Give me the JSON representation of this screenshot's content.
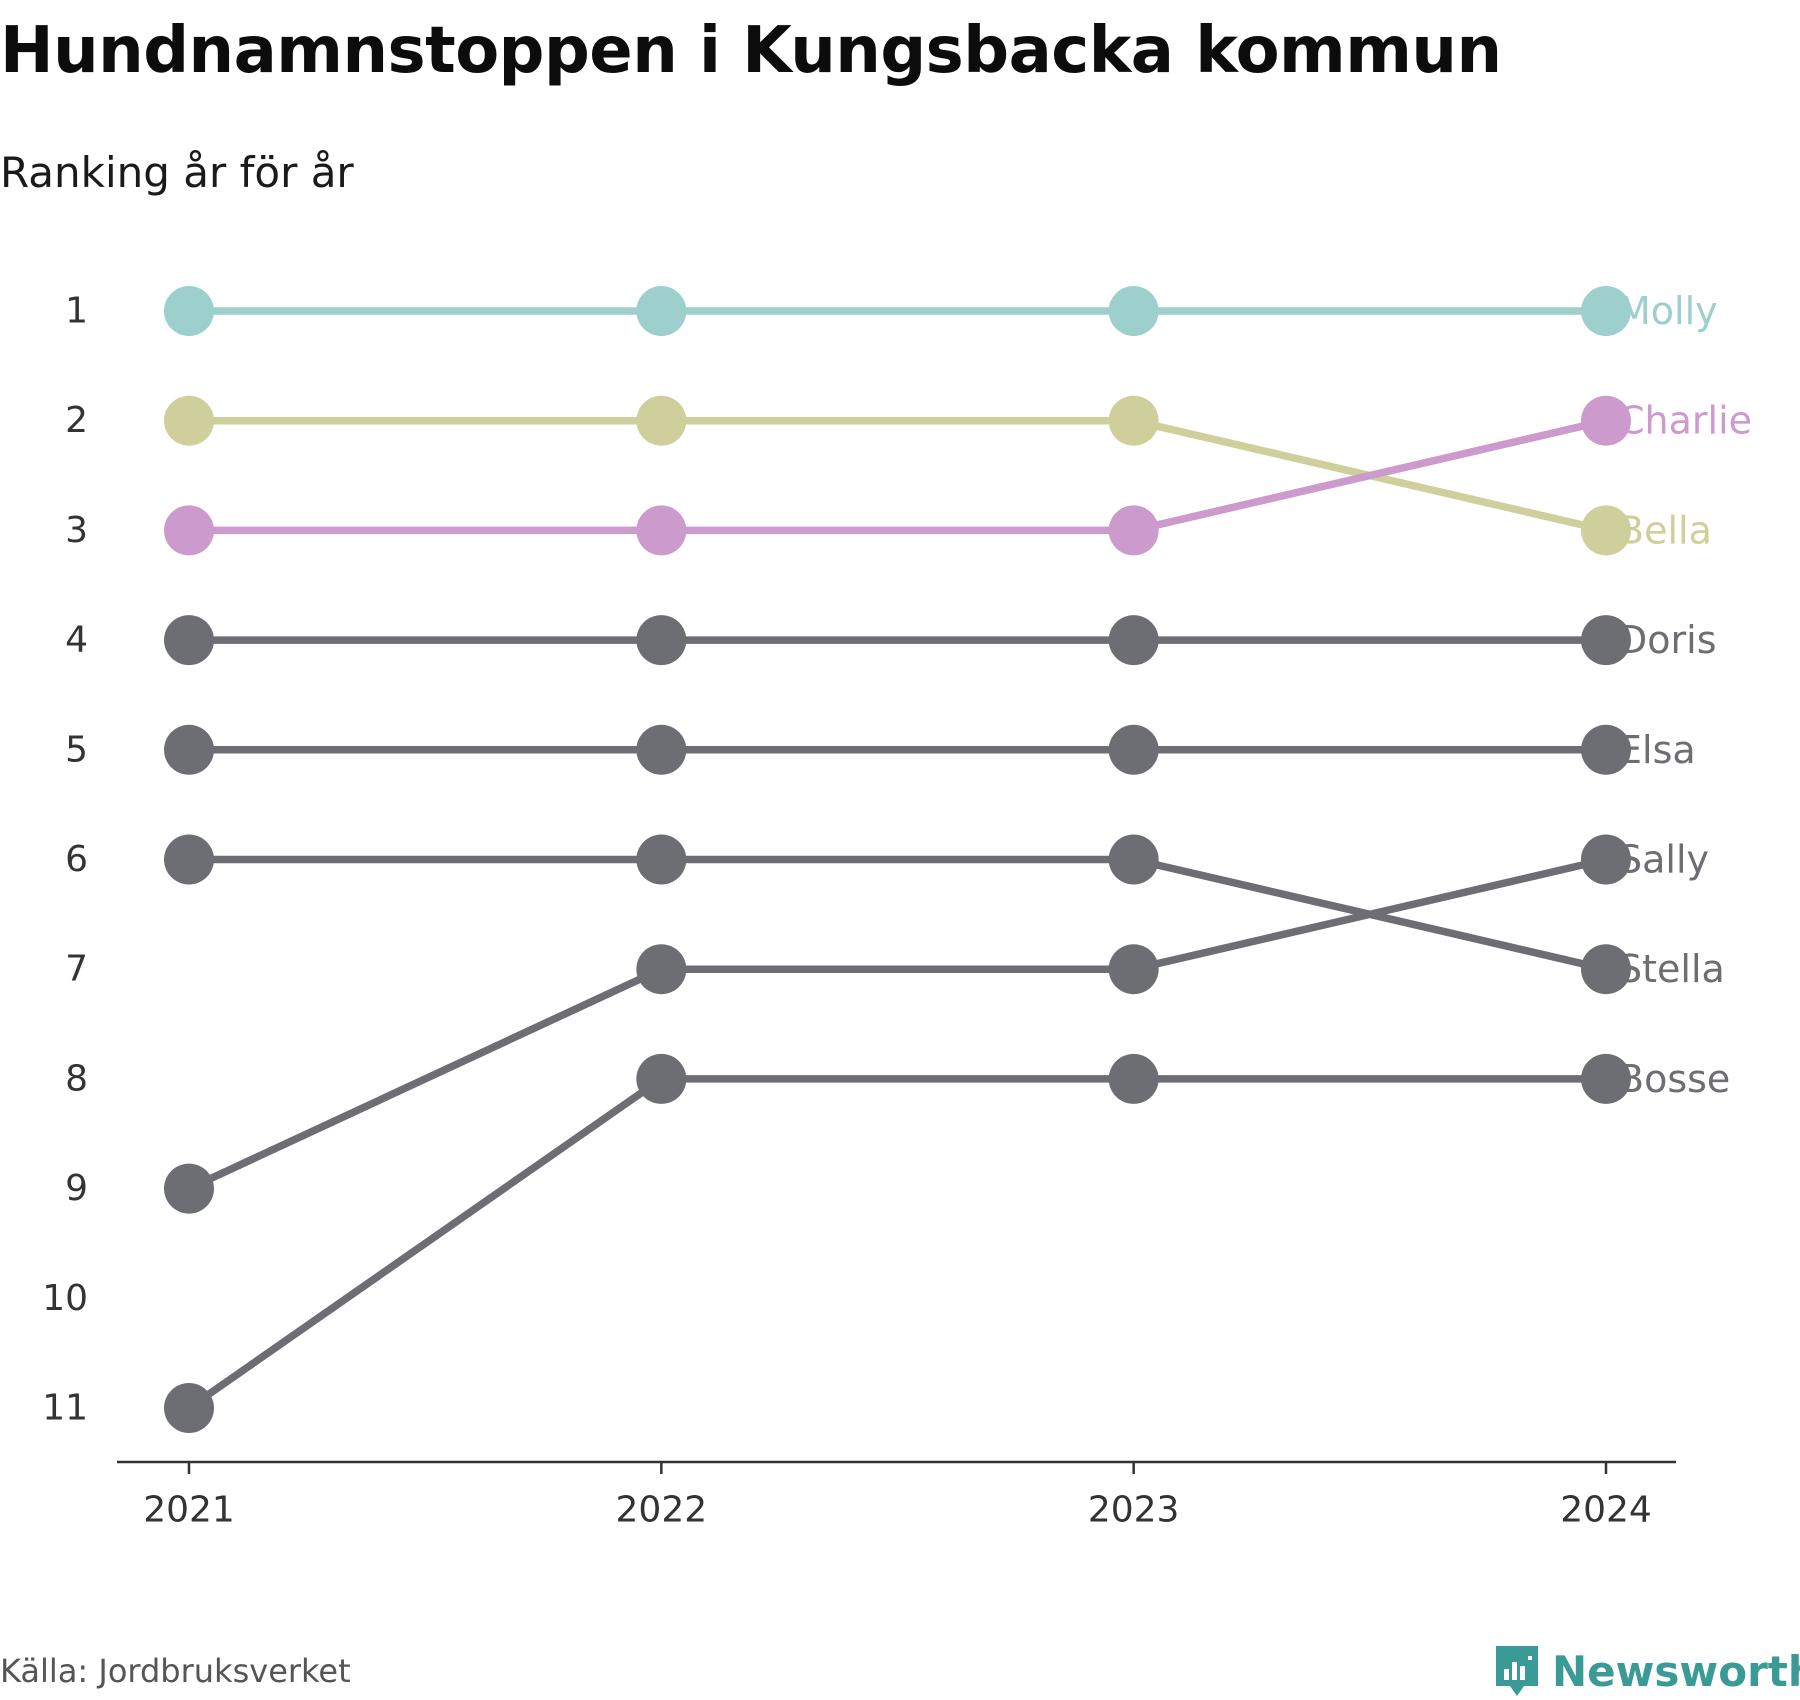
{
  "title": "Hundnamnstoppen i Kungsbacka kommun",
  "subtitle": "Ranking år för år",
  "source": "Källa: Jordbruksverket",
  "brand": "Newsworthy",
  "colors": {
    "Molly": "#9dcfcd",
    "Charlie": "#cc9acd",
    "Bella": "#cfcf9b",
    "other": "#6d6d74",
    "axis": "#333333",
    "tick_label": "#333333",
    "brand": "#3a9a96"
  },
  "chart_data": {
    "type": "line",
    "subtype": "bump",
    "x": [
      "2021",
      "2022",
      "2023",
      "2024"
    ],
    "y_ticks": [
      1,
      2,
      3,
      4,
      5,
      6,
      7,
      8,
      9,
      10,
      11
    ],
    "ylim": [
      1,
      11
    ],
    "y_inverted": true,
    "grid": false,
    "series": [
      {
        "name": "Molly",
        "values": [
          1,
          1,
          1,
          1
        ]
      },
      {
        "name": "Bella",
        "values": [
          2,
          2,
          2,
          3
        ]
      },
      {
        "name": "Charlie",
        "values": [
          3,
          3,
          3,
          2
        ]
      },
      {
        "name": "Doris",
        "values": [
          4,
          4,
          4,
          4
        ]
      },
      {
        "name": "Elsa",
        "values": [
          5,
          5,
          5,
          5
        ]
      },
      {
        "name": "Stella",
        "values": [
          6,
          6,
          6,
          7
        ]
      },
      {
        "name": "Sally",
        "values": [
          9,
          7,
          7,
          6
        ]
      },
      {
        "name": "Bosse",
        "values": [
          11,
          8,
          8,
          8
        ]
      }
    ]
  }
}
